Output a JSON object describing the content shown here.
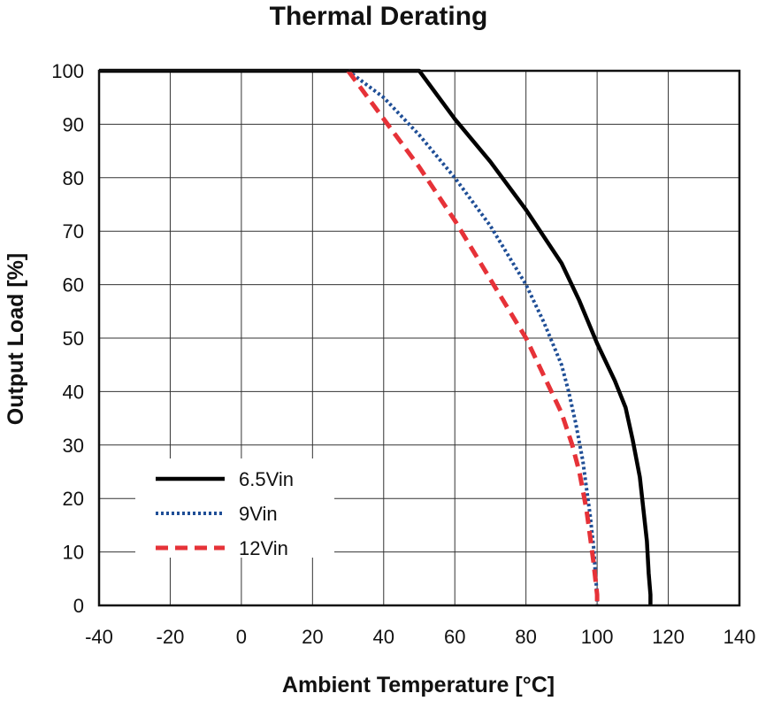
{
  "chart_data": {
    "type": "line",
    "title": "Thermal Derating",
    "xlabel": "Ambient Temperature [°C]",
    "ylabel": "Output Load [%]",
    "xlim": [
      -40,
      140
    ],
    "ylim": [
      0,
      100
    ],
    "x_ticks": [
      "-40",
      "-20",
      "0",
      "20",
      "40",
      "60",
      "80",
      "100",
      "120",
      "140"
    ],
    "y_ticks": [
      "0",
      "10",
      "20",
      "30",
      "40",
      "50",
      "60",
      "70",
      "80",
      "90",
      "100"
    ],
    "grid": true,
    "legend_position": "bottom-left",
    "series": [
      {
        "name": "6.5Vin",
        "color": "#000000",
        "style": "solid",
        "x": [
          -40,
          50,
          60,
          70,
          80,
          90,
          95,
          100,
          105,
          108,
          110,
          112,
          113,
          114,
          114.5,
          115,
          115
        ],
        "y": [
          100,
          100,
          91,
          83,
          74,
          64,
          57,
          49,
          42,
          37,
          31,
          24,
          18,
          12,
          6,
          2,
          0
        ]
      },
      {
        "name": "9Vin",
        "color": "#1f4e96",
        "style": "dotted",
        "x": [
          30,
          40,
          50,
          60,
          70,
          80,
          85,
          90,
          92,
          94,
          96,
          97,
          98,
          99,
          99.5,
          100,
          100
        ],
        "y": [
          100,
          95,
          88,
          80,
          71,
          60,
          53,
          45,
          40,
          34,
          27,
          22,
          17,
          11,
          6,
          2,
          0
        ]
      },
      {
        "name": "12Vin",
        "color": "#e63238",
        "style": "dashed",
        "x": [
          30,
          40,
          50,
          60,
          70,
          80,
          85,
          90,
          93,
          95,
          97,
          98,
          99,
          99.5,
          100,
          100
        ],
        "y": [
          100,
          91,
          82,
          72,
          61,
          50,
          43,
          36,
          30,
          25,
          18,
          13,
          8,
          5,
          2,
          0
        ]
      }
    ]
  }
}
